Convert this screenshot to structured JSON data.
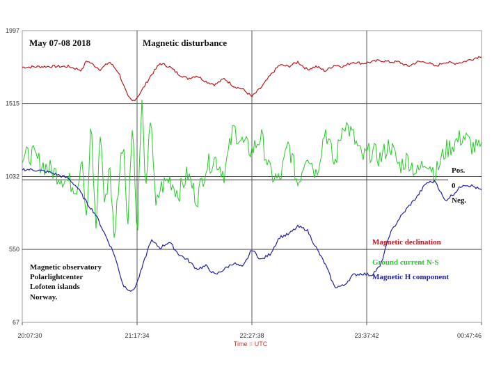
{
  "chart_data": {
    "type": "line",
    "title": "Magnetic disturbance",
    "date_label": "May 07-08 2018",
    "xlabel": "Time = UTC",
    "x_ticks": [
      "20:07:30",
      "21:17:34",
      "22:27:38",
      "23:37:42",
      "00:47:46"
    ],
    "y_ticks": [
      1997,
      1515,
      1032,
      550,
      67
    ],
    "ylim": [
      67,
      1997
    ],
    "grid": true,
    "reference_labels": {
      "pos": "Pos.",
      "zero": "0",
      "neg": "Neg."
    },
    "observatory_text": [
      "Magnetic observatory",
      "Polarlightcenter",
      "Lofoten islands",
      "Norway."
    ],
    "legend_position": "right",
    "series": [
      {
        "name": "Magnetic declination",
        "color": "#c0151a",
        "x": [
          0,
          0.05,
          0.1,
          0.13,
          0.14,
          0.17,
          0.19,
          0.21,
          0.22,
          0.23,
          0.24,
          0.25,
          0.26,
          0.27,
          0.28,
          0.3,
          0.32,
          0.34,
          0.36,
          0.38,
          0.4,
          0.42,
          0.44,
          0.46,
          0.48,
          0.5,
          0.52,
          0.54,
          0.56,
          0.58,
          0.6,
          0.62,
          0.64,
          0.66,
          0.68,
          0.7,
          0.72,
          0.74,
          0.76,
          0.78,
          0.8,
          0.82,
          0.84,
          0.86,
          0.88,
          0.9,
          0.92,
          0.94,
          0.96,
          0.98,
          1.0
        ],
        "values": [
          1755,
          1760,
          1760,
          1735,
          1800,
          1740,
          1790,
          1720,
          1640,
          1560,
          1530,
          1555,
          1600,
          1650,
          1700,
          1780,
          1760,
          1710,
          1680,
          1700,
          1660,
          1640,
          1680,
          1630,
          1610,
          1560,
          1620,
          1700,
          1770,
          1760,
          1790,
          1740,
          1760,
          1730,
          1770,
          1760,
          1790,
          1780,
          1790,
          1800,
          1790,
          1790,
          1760,
          1790,
          1790,
          1760,
          1790,
          1780,
          1790,
          1810,
          1830
        ]
      },
      {
        "name": "Ground current N-S",
        "color": "#22cc22",
        "x": [
          0,
          0.02,
          0.04,
          0.06,
          0.08,
          0.1,
          0.12,
          0.13,
          0.14,
          0.15,
          0.16,
          0.17,
          0.18,
          0.19,
          0.2,
          0.21,
          0.22,
          0.23,
          0.24,
          0.25,
          0.26,
          0.27,
          0.28,
          0.29,
          0.3,
          0.32,
          0.34,
          0.36,
          0.38,
          0.4,
          0.42,
          0.44,
          0.46,
          0.48,
          0.5,
          0.52,
          0.54,
          0.56,
          0.58,
          0.6,
          0.62,
          0.64,
          0.66,
          0.68,
          0.7,
          0.72,
          0.74,
          0.76,
          0.78,
          0.8,
          0.82,
          0.84,
          0.86,
          0.88,
          0.9,
          0.92,
          0.94,
          0.96,
          0.98,
          1.0
        ],
        "values": [
          1150,
          1180,
          1120,
          1080,
          1040,
          1000,
          960,
          1200,
          700,
          1400,
          650,
          1350,
          800,
          1150,
          600,
          1000,
          1300,
          700,
          1450,
          600,
          1550,
          900,
          1500,
          800,
          950,
          1020,
          920,
          1050,
          880,
          1100,
          1150,
          1050,
          1350,
          1250,
          1200,
          1300,
          1050,
          1000,
          1250,
          980,
          1200,
          1050,
          1350,
          1100,
          1400,
          1300,
          1150,
          1200,
          1150,
          1250,
          1100,
          1150,
          1050,
          1150,
          1050,
          1200,
          1250,
          1300,
          1230,
          1200
        ]
      },
      {
        "name": "Magnetic H component",
        "color": "#1f1fa8",
        "x": [
          0,
          0.03,
          0.06,
          0.08,
          0.1,
          0.12,
          0.14,
          0.16,
          0.18,
          0.2,
          0.22,
          0.24,
          0.25,
          0.26,
          0.28,
          0.3,
          0.32,
          0.34,
          0.36,
          0.38,
          0.4,
          0.42,
          0.44,
          0.46,
          0.48,
          0.5,
          0.52,
          0.54,
          0.56,
          0.58,
          0.6,
          0.62,
          0.64,
          0.66,
          0.68,
          0.7,
          0.72,
          0.74,
          0.76,
          0.78,
          0.8,
          0.82,
          0.84,
          0.86,
          0.88,
          0.9,
          0.92,
          0.94,
          0.96,
          0.98,
          1.0
        ],
        "values": [
          1080,
          1075,
          1060,
          1040,
          1020,
          960,
          860,
          780,
          650,
          520,
          310,
          270,
          330,
          420,
          610,
          560,
          600,
          520,
          480,
          420,
          440,
          380,
          420,
          460,
          430,
          550,
          480,
          520,
          630,
          650,
          700,
          680,
          560,
          450,
          300,
          310,
          380,
          390,
          380,
          440,
          650,
          750,
          830,
          900,
          990,
          1000,
          870,
          920,
          980,
          970,
          940
        ]
      }
    ],
    "legend": [
      {
        "label": "Magnetic declination",
        "color": "#c0151a"
      },
      {
        "label": "Ground current N-S",
        "color": "#22cc22"
      },
      {
        "label": "Magnetic H component",
        "color": "#1f1fa8"
      }
    ]
  }
}
